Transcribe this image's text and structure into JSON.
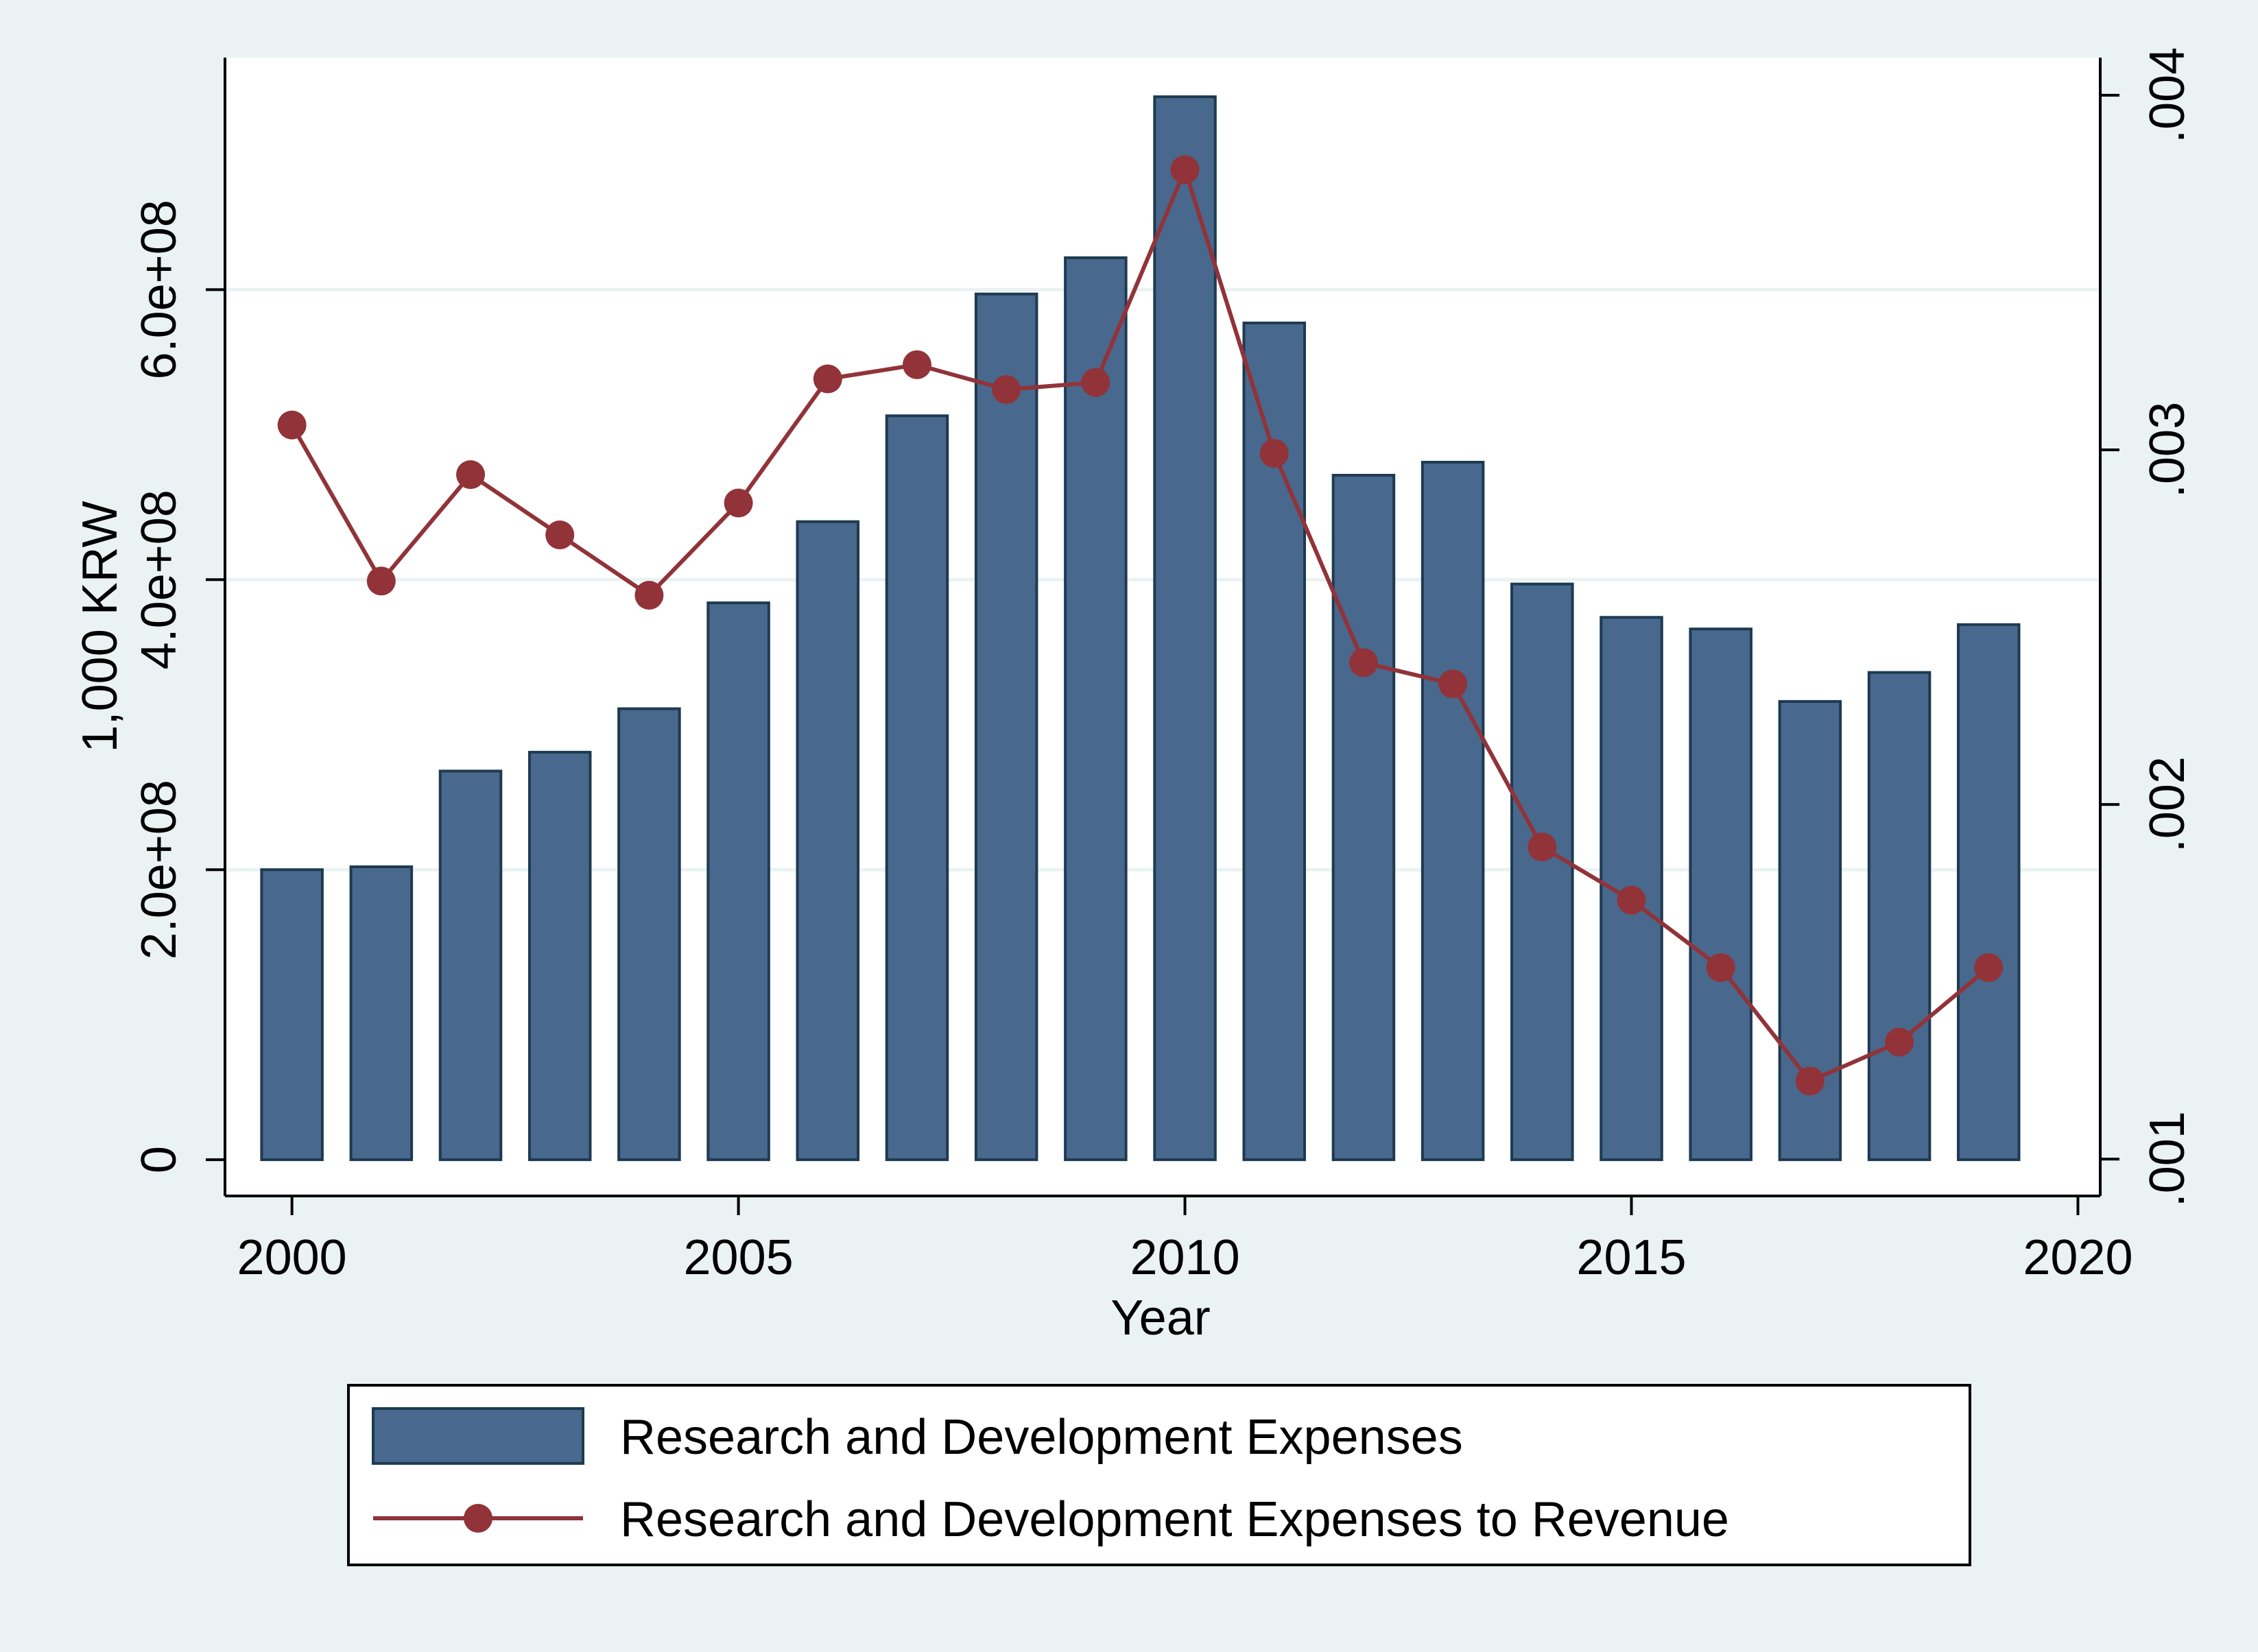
{
  "chart_data": {
    "type": "bar",
    "x": [
      2000,
      2001,
      2002,
      2003,
      2004,
      2005,
      2006,
      2007,
      2008,
      2009,
      2010,
      2011,
      2012,
      2013,
      2014,
      2015,
      2016,
      2017,
      2018,
      2019
    ],
    "xlabel": "Year",
    "ylabel": "1,000 KRW",
    "x_ticks": [
      2000,
      2005,
      2010,
      2015,
      2020
    ],
    "x_tick_labels": [
      "2000",
      "2005",
      "2010",
      "2015",
      "2020"
    ],
    "xlim": [
      1999.25,
      2020.25
    ],
    "ylim": [
      -25000000,
      760000000
    ],
    "y_ticks": [
      0,
      200000000,
      400000000,
      600000000
    ],
    "y_tick_labels": [
      "0",
      "2.0e+08",
      "4.0e+08",
      "6.0e+08"
    ],
    "y2lim": [
      0.000896,
      0.004106
    ],
    "y2_ticks": [
      0.001,
      0.002,
      0.003,
      0.004
    ],
    "y2_tick_labels": [
      ".001",
      ".002",
      ".003",
      ".004"
    ],
    "grid": true,
    "legend_position": "bottom",
    "series": [
      {
        "name": "Research and Development Expenses",
        "type": "bar",
        "axis": "left",
        "color": "#48698d",
        "values": [
          200000000,
          202000000,
          268000000,
          281000000,
          311000000,
          384000000,
          440000000,
          513000000,
          597000000,
          622000000,
          733000000,
          577000000,
          472000000,
          481000000,
          397000000,
          374000000,
          366000000,
          316000000,
          336000000,
          369000000
        ]
      },
      {
        "name": "Research and Development Expenses to Revenue",
        "type": "line",
        "axis": "right",
        "color": "#913339",
        "values": [
          0.00307,
          0.00263,
          0.00293,
          0.00276,
          0.00259,
          0.00285,
          0.0032,
          0.00324,
          0.00317,
          0.00319,
          0.00379,
          0.00299,
          0.0024,
          0.00234,
          0.00188,
          0.00173,
          0.00154,
          0.00122,
          0.00133,
          0.00154
        ]
      }
    ]
  }
}
